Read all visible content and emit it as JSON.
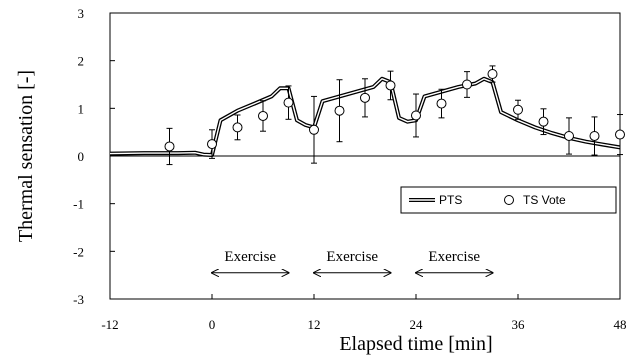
{
  "chart_data": {
    "type": "line",
    "title": "",
    "xlabel": "Elapsed time  [min]",
    "ylabel": "Thermal sensation [-]",
    "xlim": [
      -12,
      48
    ],
    "ylim": [
      -3,
      3
    ],
    "x_ticks": [
      -12,
      0,
      12,
      24,
      36,
      48
    ],
    "y_ticks": [
      -3,
      -2,
      -1,
      0,
      1,
      2,
      3
    ],
    "grid": false,
    "legend_position": "lower-right",
    "series": [
      {
        "name": "PTS",
        "kind": "line",
        "style": "double-line",
        "color": "#000000",
        "points": [
          [
            -12,
            0.05
          ],
          [
            -8,
            0.06
          ],
          [
            -4,
            0.06
          ],
          [
            -2,
            0.07
          ],
          [
            -1,
            0.03
          ],
          [
            0,
            0.02
          ],
          [
            1,
            0.75
          ],
          [
            3,
            0.95
          ],
          [
            5,
            1.1
          ],
          [
            7,
            1.25
          ],
          [
            8,
            1.42
          ],
          [
            9,
            1.42
          ],
          [
            10,
            0.75
          ],
          [
            11,
            0.65
          ],
          [
            12,
            0.6
          ],
          [
            13,
            1.15
          ],
          [
            15,
            1.25
          ],
          [
            17,
            1.35
          ],
          [
            19,
            1.45
          ],
          [
            20,
            1.62
          ],
          [
            21,
            1.55
          ],
          [
            22,
            0.8
          ],
          [
            23,
            0.72
          ],
          [
            24,
            0.75
          ],
          [
            25,
            1.25
          ],
          [
            27,
            1.35
          ],
          [
            29,
            1.45
          ],
          [
            31,
            1.52
          ],
          [
            32,
            1.62
          ],
          [
            33,
            1.55
          ],
          [
            34,
            0.92
          ],
          [
            36,
            0.75
          ],
          [
            38,
            0.6
          ],
          [
            40,
            0.48
          ],
          [
            42,
            0.38
          ],
          [
            44,
            0.3
          ],
          [
            46,
            0.24
          ],
          [
            48,
            0.18
          ]
        ]
      },
      {
        "name": "TS Vote",
        "kind": "scatter",
        "marker": "open-circle",
        "color": "#000000",
        "points": [
          {
            "x": -5,
            "y": 0.2,
            "err": 0.38
          },
          {
            "x": 0,
            "y": 0.25,
            "err": 0.3
          },
          {
            "x": 3,
            "y": 0.6,
            "err": 0.26
          },
          {
            "x": 6,
            "y": 0.84,
            "err": 0.32
          },
          {
            "x": 9,
            "y": 1.12,
            "err": 0.35
          },
          {
            "x": 12,
            "y": 0.55,
            "err": 0.7
          },
          {
            "x": 15,
            "y": 0.95,
            "err": 0.65
          },
          {
            "x": 18,
            "y": 1.22,
            "err": 0.4
          },
          {
            "x": 21,
            "y": 1.48,
            "err": 0.3
          },
          {
            "x": 24,
            "y": 0.85,
            "err": 0.45
          },
          {
            "x": 27,
            "y": 1.1,
            "err": 0.3
          },
          {
            "x": 30,
            "y": 1.5,
            "err": 0.27
          },
          {
            "x": 33,
            "y": 1.72,
            "err": 0.17
          },
          {
            "x": 36,
            "y": 0.97,
            "err": 0.2
          },
          {
            "x": 39,
            "y": 0.72,
            "err": 0.27
          },
          {
            "x": 42,
            "y": 0.42,
            "err": 0.38
          },
          {
            "x": 45,
            "y": 0.42,
            "err": 0.4
          },
          {
            "x": 48,
            "y": 0.45,
            "err": 0.42
          }
        ]
      }
    ],
    "annotations": [
      {
        "label": "Exercise",
        "x_start": 0,
        "x_end": 9,
        "y": -2.45
      },
      {
        "label": "Exercise",
        "x_start": 12,
        "x_end": 21,
        "y": -2.45
      },
      {
        "label": "Exercise",
        "x_start": 24,
        "x_end": 33,
        "y": -2.45
      }
    ]
  }
}
